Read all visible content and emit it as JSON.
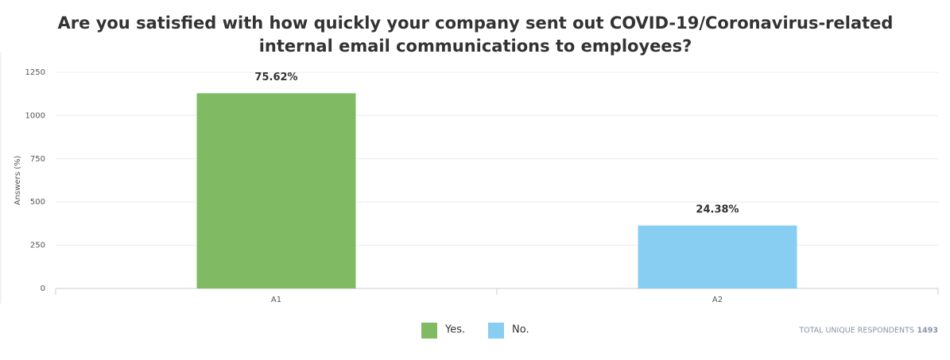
{
  "chart_data": {
    "type": "bar",
    "title": [
      "Are you satisfied with how quickly your company sent out COVID-19/Coronavirus-related",
      "internal email communications to employees?"
    ],
    "y_label": "Answers (%)",
    "categories": [
      "A1",
      "A2"
    ],
    "values": [
      1129,
      364
    ],
    "value_labels": [
      "75.62%",
      "24.38%"
    ],
    "colors": [
      "#80bb63",
      "#87cef2"
    ],
    "legend": [
      "Yes.",
      "No."
    ],
    "ylim": [
      0,
      1250
    ],
    "yticks": [
      0,
      250,
      500,
      750,
      1000,
      1250
    ],
    "grid": true,
    "total_respondents_label": "TOTAL UNIQUE RESPONDENTS",
    "total_respondents": 1493
  }
}
